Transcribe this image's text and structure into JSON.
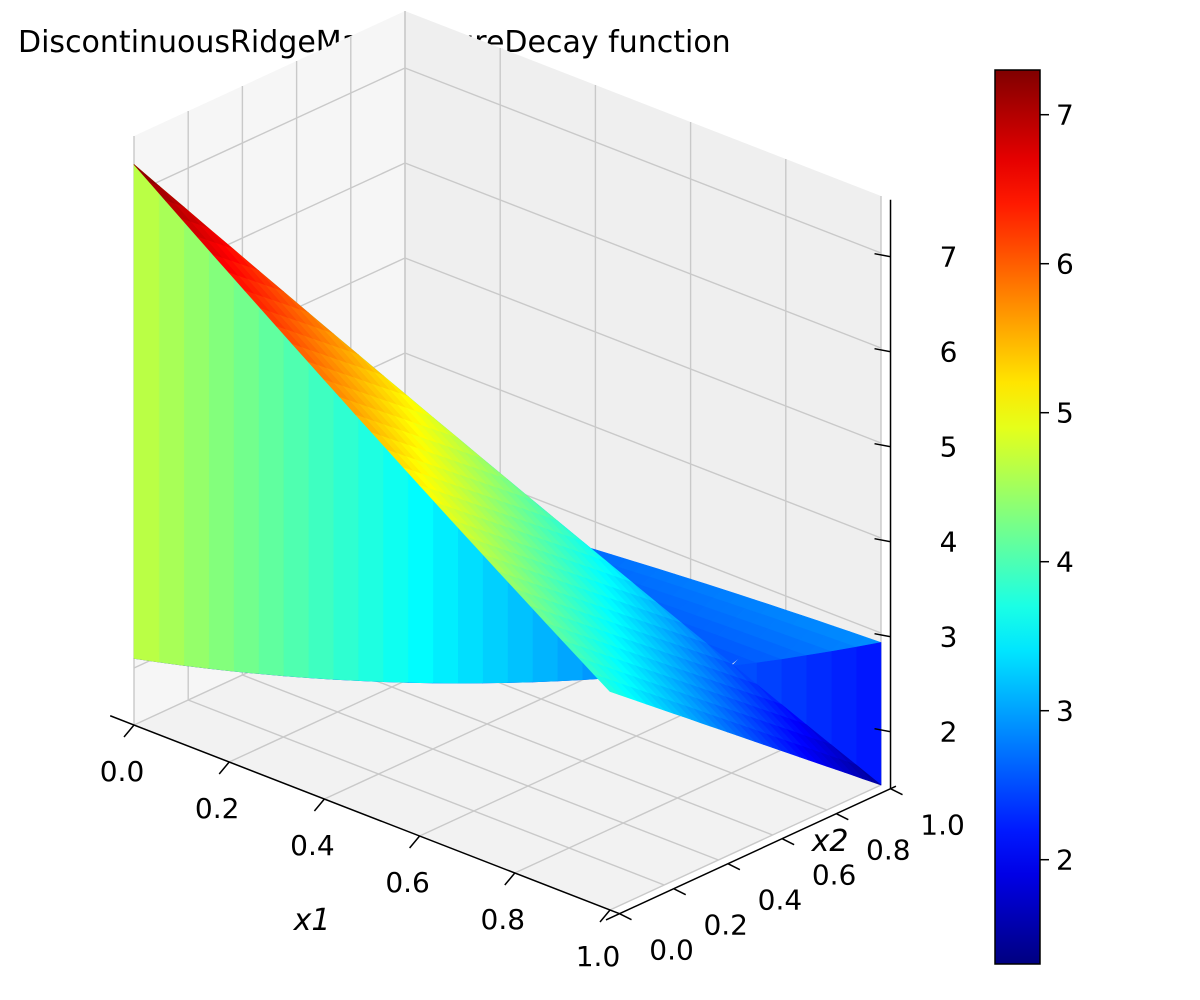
{
  "chart_data": {
    "type": "surface",
    "title": "DiscontinuousRidgeManufactureDecay function",
    "xlabel": "x1",
    "ylabel": "x2",
    "zlabel": "",
    "xlim": [
      0.0,
      1.0
    ],
    "ylim": [
      0.0,
      1.0
    ],
    "zlim": [
      1.4,
      7.6
    ],
    "x_ticks": [
      "0.0",
      "0.2",
      "0.4",
      "0.6",
      "0.8",
      "1.0"
    ],
    "y_ticks": [
      "0.0",
      "0.2",
      "0.4",
      "0.6",
      "0.8",
      "1.0"
    ],
    "z_ticks": [
      "2",
      "3",
      "4",
      "5",
      "6",
      "7"
    ],
    "colormap": "jet",
    "colorbar": {
      "range": [
        1.3,
        7.3
      ],
      "ticks": [
        "2",
        "3",
        "4",
        "5",
        "6",
        "7"
      ]
    },
    "grid": true,
    "surface_corners": [
      {
        "x1": 0.0,
        "x2": 0.0,
        "z": 7.3
      },
      {
        "x1": 1.0,
        "x2": 0.0,
        "z": 3.5
      },
      {
        "x1": 0.0,
        "x2": 1.0,
        "z": 5.0
      },
      {
        "x1": 1.0,
        "x2": 1.0,
        "z": 3.2
      }
    ],
    "ridge": "discontinuity along the x1 = x2 diagonal; region x2 > x1 drops to about 1.6–2.1"
  }
}
